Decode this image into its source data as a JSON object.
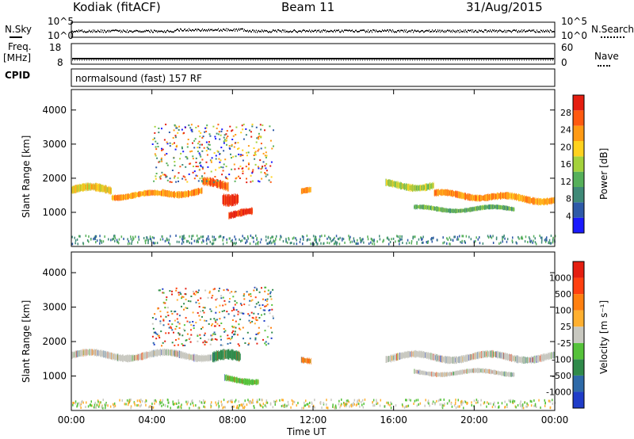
{
  "header": {
    "station": "Kodiak (fitACF)",
    "beam": "Beam 11",
    "date": "31/Aug/2015"
  },
  "top_panels": {
    "nsky_label": "N.Sky",
    "nsearch_label": "N.Search",
    "count_left_ticks": [
      "10^5",
      "10^0"
    ],
    "count_right_ticks": [
      "10^5",
      "10^0"
    ],
    "freq_label": "Freq.",
    "freq_unit": "[MHz]",
    "freq_ticks": [
      "18",
      "8"
    ],
    "nave_label": "Nave",
    "nave_ticks": [
      "60",
      "0"
    ],
    "cpid_label": "CPID",
    "cpid_value": "normalsound (fast) 157 RF"
  },
  "chart_data": [
    {
      "type": "heatmap",
      "name": "power",
      "ylabel": "Slant Range [km]",
      "xlabel": "",
      "x_ticks": [
        "00:00",
        "04:00",
        "08:00",
        "12:00",
        "16:00",
        "20:00",
        "00:00"
      ],
      "y_ticks": [
        1000,
        2000,
        3000,
        4000
      ],
      "ylim": [
        0,
        4600
      ],
      "xlim_hours": [
        0,
        24
      ],
      "colorbar": {
        "label": "Power [dB]",
        "ticks": [
          4,
          8,
          12,
          16,
          20,
          24,
          28
        ],
        "range": [
          0,
          32
        ],
        "colors": [
          "#1a1aff",
          "#2e5aa8",
          "#3f8a78",
          "#56b05a",
          "#a4d23c",
          "#ffd21e",
          "#ff9a14",
          "#ff5a10",
          "#e51e10"
        ]
      },
      "bands": [
        {
          "x0": 0.0,
          "x1": 2.0,
          "y": 1650,
          "dy": 200,
          "level": 5
        },
        {
          "x0": 2.0,
          "x1": 4.5,
          "y": 1500,
          "dy": 150,
          "level": 6
        },
        {
          "x0": 4.5,
          "x1": 6.5,
          "y": 1600,
          "dy": 170,
          "level": 6
        },
        {
          "x0": 6.5,
          "x1": 7.8,
          "y": 1800,
          "dy": 220,
          "level": 7
        },
        {
          "x0": 7.5,
          "x1": 8.3,
          "y": 1500,
          "dy": 300,
          "level": 8
        },
        {
          "x0": 7.8,
          "x1": 9.0,
          "y": 950,
          "dy": 180,
          "level": 8
        },
        {
          "x0": 11.4,
          "x1": 11.9,
          "y": 1600,
          "dy": 150,
          "level": 6
        },
        {
          "x0": 15.6,
          "x1": 18.0,
          "y": 1800,
          "dy": 180,
          "level": 4
        },
        {
          "x0": 18.0,
          "x1": 21.0,
          "y": 1500,
          "dy": 170,
          "level": 6
        },
        {
          "x0": 21.0,
          "x1": 24.0,
          "y": 1400,
          "dy": 180,
          "level": 6
        },
        {
          "x0": 17.0,
          "x1": 22.0,
          "y": 1100,
          "dy": 120,
          "level": 3
        }
      ]
    },
    {
      "type": "heatmap",
      "name": "velocity",
      "ylabel": "Slant Range [km]",
      "xlabel": "Time UT",
      "x_ticks": [
        "00:00",
        "04:00",
        "08:00",
        "12:00",
        "16:00",
        "20:00",
        "00:00"
      ],
      "y_ticks": [
        1000,
        2000,
        3000,
        4000
      ],
      "ylim": [
        0,
        4600
      ],
      "xlim_hours": [
        0,
        24
      ],
      "colorbar": {
        "label": "Velocity [m s⁻¹]",
        "ticks": [
          "1000",
          "500",
          "100",
          "25",
          "-25",
          "-100",
          "-500",
          "-1000"
        ],
        "colors": [
          "#1f3cc8",
          "#2e6aa8",
          "#2f8a4a",
          "#55c23a",
          "#c8c8c0",
          "#ffb030",
          "#ff8010",
          "#ff4010",
          "#e51e10"
        ]
      },
      "bands": [
        {
          "x0": 0.0,
          "x1": 7.0,
          "y": 1600,
          "dy": 180,
          "color": "#c8c8c0"
        },
        {
          "x0": 7.0,
          "x1": 8.4,
          "y": 1500,
          "dy": 260,
          "color": "#2f8a4a"
        },
        {
          "x0": 7.6,
          "x1": 9.3,
          "y": 900,
          "dy": 160,
          "color": "#55c23a"
        },
        {
          "x0": 11.4,
          "x1": 11.9,
          "y": 1500,
          "dy": 150,
          "color": "#ff8010"
        },
        {
          "x0": 15.6,
          "x1": 24.0,
          "y": 1550,
          "dy": 180,
          "color": "#c8c8c0"
        },
        {
          "x0": 17.0,
          "x1": 22.0,
          "y": 1100,
          "dy": 120,
          "color": "#c8c8c0"
        }
      ]
    }
  ]
}
